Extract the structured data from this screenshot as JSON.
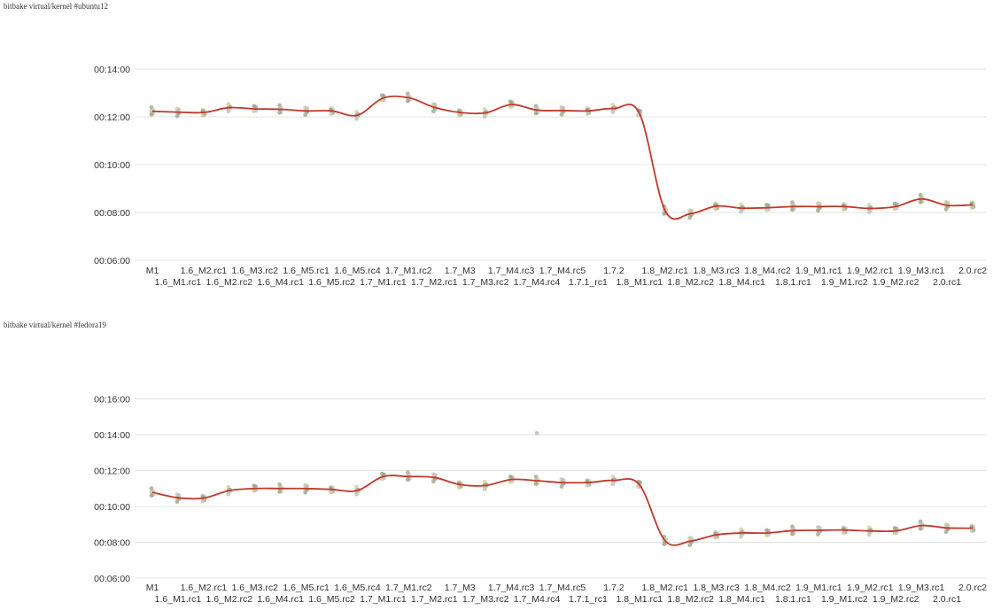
{
  "chart_data": [
    {
      "type": "line",
      "title": "bitbake virtual/kernel #ubuntu12",
      "yticks": [
        "00:06:00",
        "00:08:00",
        "00:10:00",
        "00:12:00",
        "00:14:00"
      ],
      "ylim_seconds": [
        360,
        840
      ],
      "categories_upper": [
        "M1",
        "1.6_M2.rc1",
        "1.6_M3.rc2",
        "1.6_M5.rc1",
        "1.6_M5.rc4",
        "1.7_M1.rc2",
        "1.7_M3",
        "1.7_M4.rc3",
        "1.7_M4.rc5",
        "1.7.2",
        "1.8_M2.rc1",
        "1.8_M3.rc3",
        "1.8_M4.rc2",
        "1.9_M1.rc1",
        "1.9_M2.rc1",
        "1.9_M3.rc1",
        "2.0.rc2"
      ],
      "categories_lower": [
        "1.6_M1.rc1",
        "1.6_M2.rc2",
        "1.6_M4.rc1",
        "1.6_M5.rc2",
        "1.7_M1.rc1",
        "1.7_M2.rc1",
        "1.7_M3.rc2",
        "1.7_M4.rc4",
        "1.7.1_rc1",
        "1.8_M1.rc1",
        "1.8_M2.rc2",
        "1.8_M4.rc1",
        "1.8.1.rc1",
        "1.9_M1.rc2",
        "1.9_M2.rc2",
        "2.0.rc1"
      ],
      "series": [
        {
          "values_seconds": [
            734,
            732,
            731,
            743,
            740,
            739,
            735,
            735,
            724,
            767,
            768,
            744,
            731,
            730,
            751,
            737,
            736,
            735,
            741,
            729,
            485,
            477,
            496,
            491,
            492,
            495,
            495,
            495,
            490,
            495,
            514,
            498,
            499
          ]
        }
      ],
      "line_color": "#c0392b"
    },
    {
      "type": "line",
      "title": "bitbake virtual/kernel #fedora19",
      "yticks": [
        "00:06:00",
        "00:08:00",
        "00:10:00",
        "00:12:00",
        "00:14:00",
        "00:16:00"
      ],
      "ylim_seconds": [
        360,
        1000
      ],
      "categories_upper": [
        "M1",
        "1.6_M2.rc1",
        "1.6_M3.rc2",
        "1.6_M5.rc1",
        "1.6_M5.rc4",
        "1.7_M1.rc2",
        "1.7_M3",
        "1.7_M4.rc3",
        "1.7_M4.rc5",
        "1.7.2",
        "1.8_M2.rc1",
        "1.8_M3.rc3",
        "1.8_M4.rc2",
        "1.9_M1.rc1",
        "1.9_M2.rc1",
        "1.9_M3.rc1",
        "2.0.rc2"
      ],
      "categories_lower": [
        "1.6_M1.rc1",
        "1.6_M2.rc2",
        "1.6_M4.rc1",
        "1.6_M5.rc2",
        "1.7_M1.rc1",
        "1.7_M2.rc1",
        "1.7_M3.rc2",
        "1.7_M4.rc4",
        "1.7.1_rc1",
        "1.8_M1.rc1",
        "1.8_M2.rc2",
        "1.8_M4.rc1",
        "1.8.1.rc1",
        "1.9_M1.rc2",
        "1.9_M2.rc2",
        "2.0.rc1"
      ],
      "series": [
        {
          "values_seconds": [
            647,
            629,
            628,
            653,
            660,
            660,
            660,
            657,
            653,
            700,
            700,
            697,
            673,
            670,
            690,
            686,
            680,
            680,
            687,
            673,
            485,
            484,
            505,
            511,
            511,
            519,
            520,
            521,
            518,
            518,
            536,
            528,
            527
          ]
        }
      ],
      "outliers": [
        {
          "index": 15,
          "value_seconds": 845
        }
      ],
      "line_color": "#c0392b"
    }
  ]
}
